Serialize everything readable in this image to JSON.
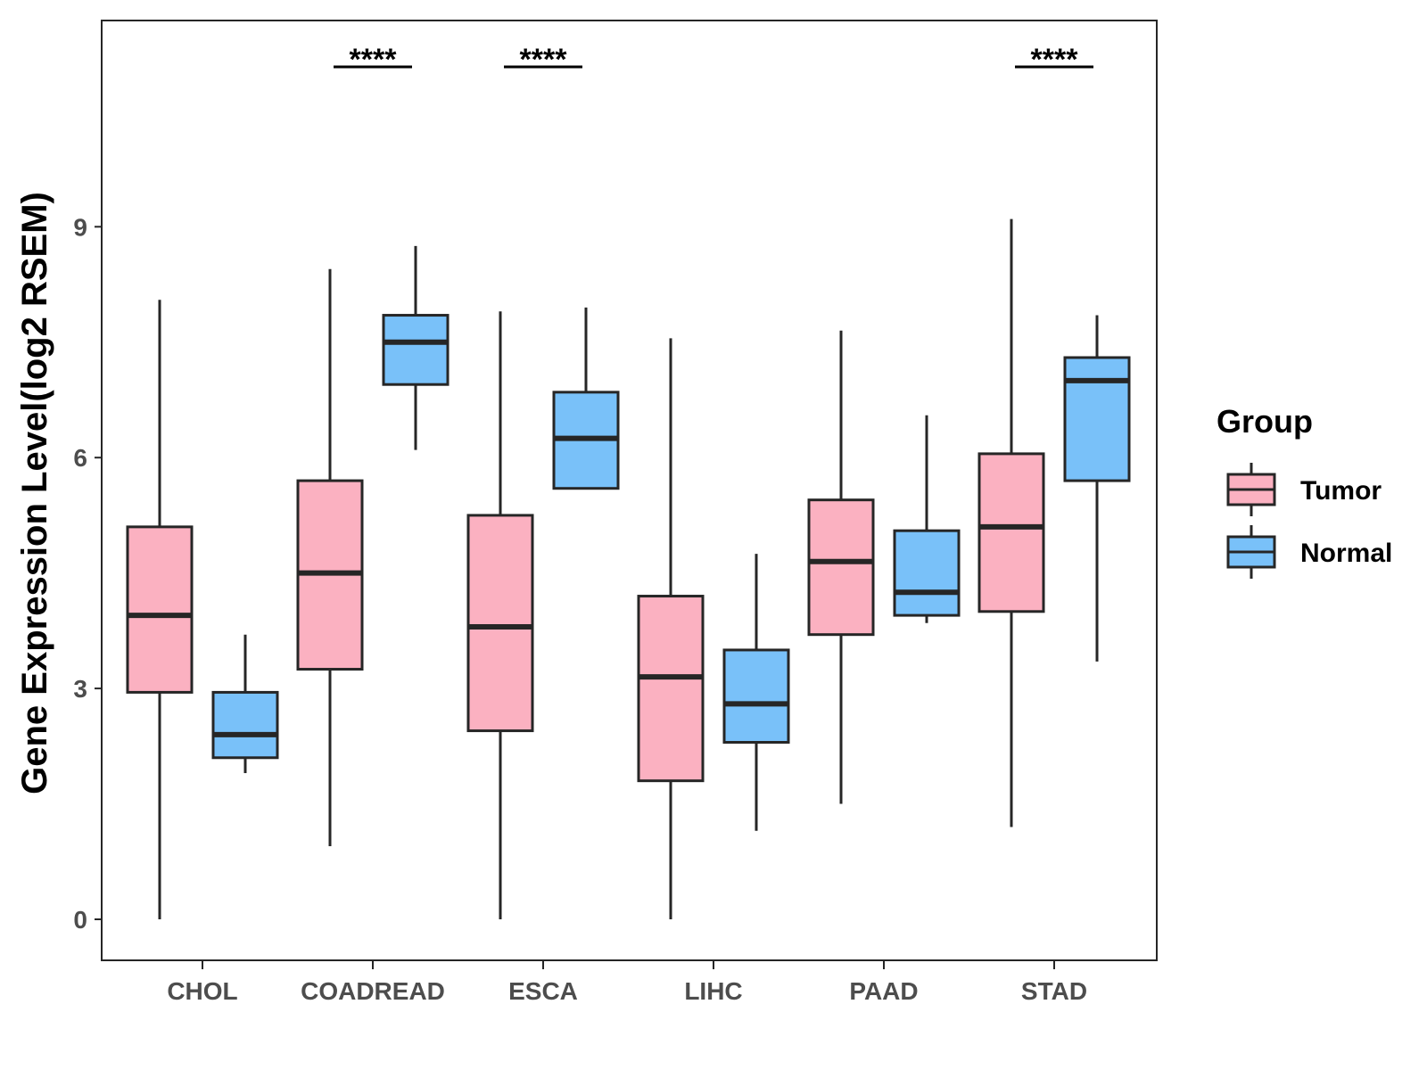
{
  "chart_data": {
    "type": "boxplot",
    "title": "",
    "xlabel": "",
    "ylabel": "Gene Expression Level(log2 RSEM)",
    "ylim": [
      -0.5,
      11.7
    ],
    "yticks": [
      0,
      3,
      6,
      9
    ],
    "categories": [
      "CHOL",
      "COADREAD",
      "ESCA",
      "LIHC",
      "PAAD",
      "STAD"
    ],
    "legend": {
      "title": "Group",
      "position": "right",
      "entries": [
        {
          "name": "Tumor",
          "color": "#FBB1C1"
        },
        {
          "name": "Normal",
          "color": "#79C1F9"
        }
      ]
    },
    "series": [
      {
        "name": "Tumor",
        "color": "#FBB1C1",
        "boxes": [
          {
            "min": 0.0,
            "q1": 2.95,
            "median": 3.95,
            "q3": 5.1,
            "max": 8.05
          },
          {
            "min": 0.95,
            "q1": 3.25,
            "median": 4.5,
            "q3": 5.7,
            "max": 8.45
          },
          {
            "min": 0.0,
            "q1": 2.45,
            "median": 3.8,
            "q3": 5.25,
            "max": 7.9
          },
          {
            "min": 0.0,
            "q1": 1.8,
            "median": 3.15,
            "q3": 4.2,
            "max": 7.55
          },
          {
            "min": 1.5,
            "q1": 3.7,
            "median": 4.65,
            "q3": 5.45,
            "max": 7.65
          },
          {
            "min": 1.2,
            "q1": 4.0,
            "median": 5.1,
            "q3": 6.05,
            "max": 9.1
          }
        ]
      },
      {
        "name": "Normal",
        "color": "#79C1F9",
        "boxes": [
          {
            "min": 1.9,
            "q1": 2.1,
            "median": 2.4,
            "q3": 2.95,
            "max": 3.7
          },
          {
            "min": 6.1,
            "q1": 6.95,
            "median": 7.5,
            "q3": 7.85,
            "max": 8.75
          },
          {
            "min": 5.6,
            "q1": 5.6,
            "median": 6.25,
            "q3": 6.85,
            "max": 7.95
          },
          {
            "min": 1.15,
            "q1": 2.3,
            "median": 2.8,
            "q3": 3.5,
            "max": 4.75
          },
          {
            "min": 3.85,
            "q1": 3.95,
            "median": 4.25,
            "q3": 5.05,
            "max": 6.55
          },
          {
            "min": 3.35,
            "q1": 5.7,
            "median": 7.0,
            "q3": 7.3,
            "max": 7.85
          }
        ]
      }
    ],
    "annotations": [
      {
        "category": "COADREAD",
        "text": "****"
      },
      {
        "category": "ESCA",
        "text": "****"
      },
      {
        "category": "STAD",
        "text": "****"
      }
    ]
  }
}
